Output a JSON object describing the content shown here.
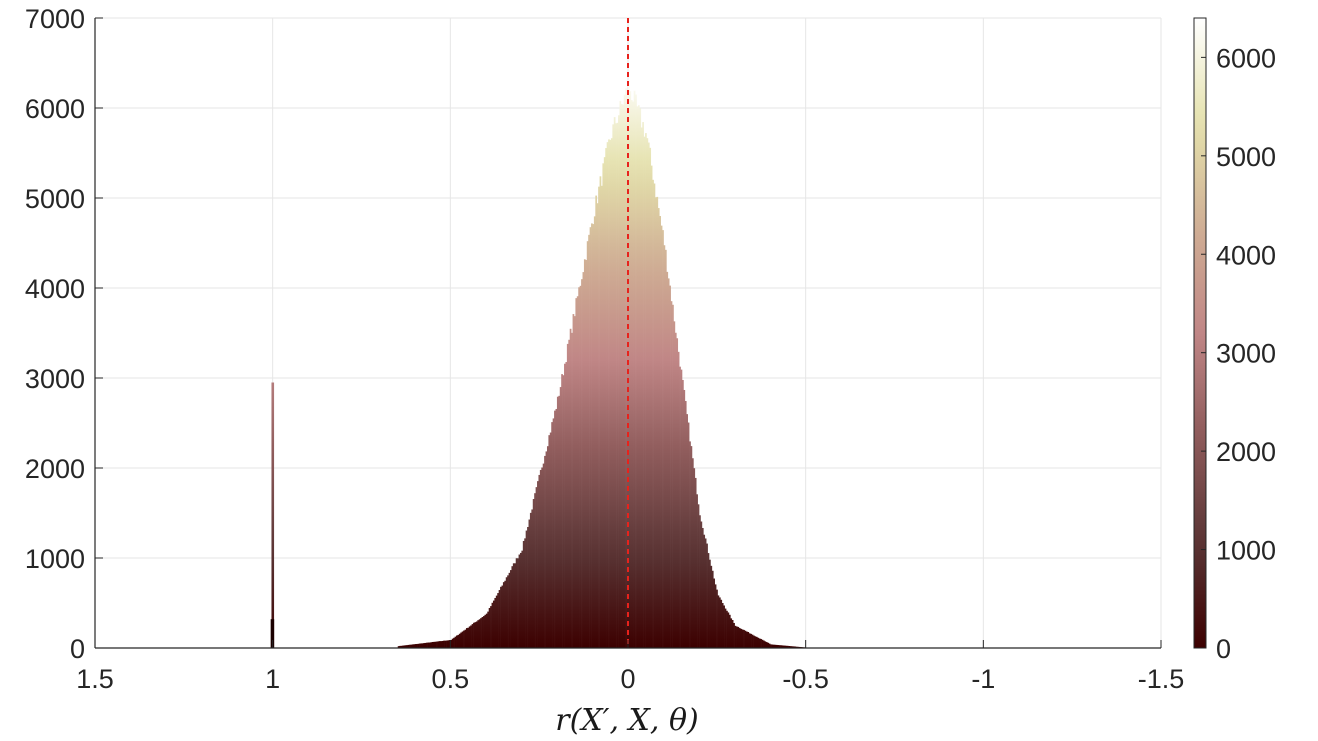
{
  "chart_data": {
    "type": "histogram",
    "title": "",
    "xlabel": "r(X′, X, θ)",
    "ylabel": "",
    "xlim": [
      1.5,
      -1.5
    ],
    "x_reversed": true,
    "ylim": [
      0,
      7000
    ],
    "grid": true,
    "xticks": [
      1.5,
      1,
      0.5,
      0,
      -0.5,
      -1,
      -1.5
    ],
    "xtick_labels": [
      "1.5",
      "1",
      "0.5",
      "0",
      "-0.5",
      "-1",
      "-1.5"
    ],
    "yticks": [
      0,
      1000,
      2000,
      3000,
      4000,
      5000,
      6000,
      7000
    ],
    "ytick_labels": [
      "0",
      "1000",
      "2000",
      "3000",
      "4000",
      "5000",
      "6000",
      "7000"
    ],
    "reference_line": {
      "x": 0,
      "color": "#e8221c",
      "style": "dashed"
    },
    "bar_color_by_count": true,
    "distribution": {
      "peak_center": 0.0,
      "peak_count": 6250,
      "profile": [
        {
          "x": 0.65,
          "count": 20
        },
        {
          "x": 0.5,
          "count": 90
        },
        {
          "x": 0.4,
          "count": 380
        },
        {
          "x": 0.3,
          "count": 1100
        },
        {
          "x": 0.2,
          "count": 2750
        },
        {
          "x": 0.1,
          "count": 4800
        },
        {
          "x": 0.05,
          "count": 5700
        },
        {
          "x": 0.0,
          "count": 6250
        },
        {
          "x": -0.05,
          "count": 5700
        },
        {
          "x": -0.1,
          "count": 4500
        },
        {
          "x": -0.2,
          "count": 1500
        },
        {
          "x": -0.25,
          "count": 600
        },
        {
          "x": -0.3,
          "count": 250
        },
        {
          "x": -0.4,
          "count": 40
        },
        {
          "x": -0.5,
          "count": 5
        }
      ],
      "spike": {
        "x": 1.0,
        "count": 2950
      }
    },
    "colorbar": {
      "ticks": [
        0,
        1000,
        2000,
        3000,
        4000,
        5000,
        6000
      ],
      "tick_labels": [
        "0",
        "1000",
        "2000",
        "3000",
        "4000",
        "5000",
        "6000"
      ],
      "range": [
        0,
        6400
      ],
      "colormap": "pink",
      "stops": [
        "#3c0000",
        "#5a3535",
        "#8d5a5a",
        "#c08686",
        "#cfae94",
        "#e4e1ac",
        "#ffffff"
      ]
    }
  }
}
